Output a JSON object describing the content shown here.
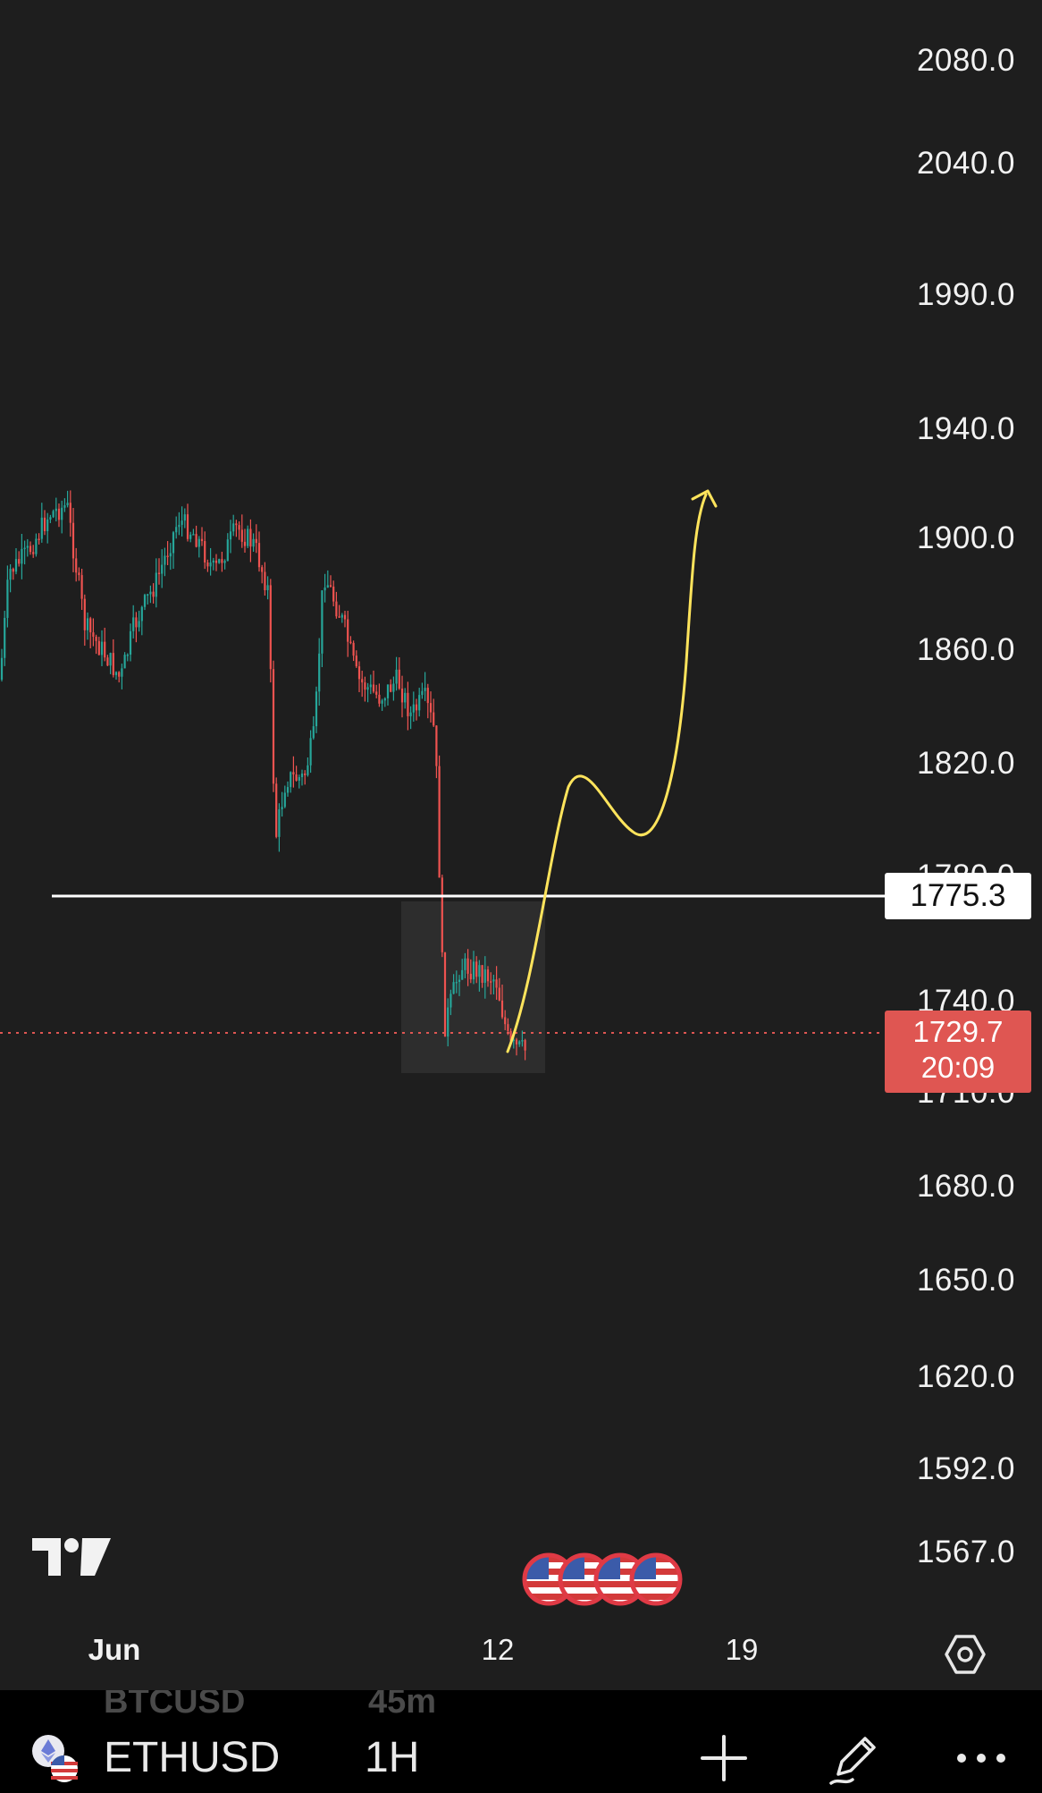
{
  "price_axis": {
    "ticks": [
      "2080.0",
      "2040.0",
      "1990.0",
      "1940.0",
      "1900.0",
      "1860.0",
      "1820.0",
      "1780.0",
      "1740.0",
      "1710.0",
      "1680.0",
      "1650.0",
      "1620.0",
      "1592.0",
      "1567.0"
    ],
    "level_badge": "1775.3",
    "last_price": "1729.7",
    "countdown": "20:09"
  },
  "time_axis": {
    "labels": [
      "Jun",
      "12",
      "19"
    ]
  },
  "drawings": {
    "horizontal_level": 1775.3,
    "projection_color": "#ffe45c",
    "level_color": "#ffffff"
  },
  "colors": {
    "up": "#26a69a",
    "down": "#ef5350",
    "last_price": "#df5652",
    "background": "#1e1e1e"
  },
  "icons": {
    "logo": "tradingview-logo",
    "events": "us-flag-icon",
    "settings": "settings-hexagon-icon",
    "symbol": "ethereum-icon"
  },
  "bottom_bar": {
    "ghost_symbol": "BTCUSD",
    "ghost_timeframe": "45m",
    "symbol": "ETHUSD",
    "timeframe": "1H"
  }
}
